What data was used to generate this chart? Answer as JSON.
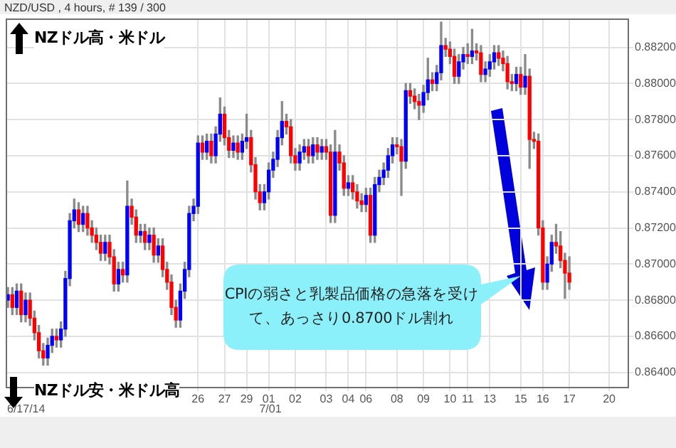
{
  "chart_data": {
    "type": "candlestick",
    "title": "NZD/USD , 4 hours, # 139 / 300",
    "annotations": [
      "NZドル高・米ドル",
      "NZドル安・米ドル高",
      "CPIの弱さと乳製品価格の急落を受けて、あっさり0.8700ドル割れ",
      "6/17/14",
      "7/01"
    ],
    "categories": [
      null,
      null,
      null,
      null,
      null,
      null,
      null,
      null,
      null,
      null,
      null,
      null,
      null,
      null,
      null,
      null,
      null,
      null,
      null,
      null,
      null,
      null,
      null,
      null,
      null,
      null,
      null,
      null,
      null,
      null,
      null,
      null,
      null,
      null,
      null,
      null,
      null,
      null,
      null,
      null,
      null,
      null,
      null,
      "26",
      null,
      null,
      null,
      null,
      null,
      "27",
      null,
      null,
      null,
      null,
      "29",
      null,
      null,
      null,
      null,
      "01",
      null,
      null,
      null,
      null,
      null,
      "02",
      null,
      null,
      null,
      null,
      null,
      null,
      "03",
      null,
      null,
      null,
      null,
      "04",
      null,
      null,
      null,
      "06",
      null,
      null,
      null,
      null,
      null,
      null,
      "08",
      null,
      null,
      null,
      null,
      null,
      "09",
      null,
      null,
      null,
      null,
      null,
      "10",
      null,
      null,
      null,
      "11",
      null,
      null,
      null,
      null,
      "13",
      null,
      null,
      null,
      null,
      null,
      null,
      "15",
      null,
      null,
      null,
      null,
      "16",
      null,
      null,
      null,
      null,
      null,
      "17",
      null,
      null,
      null,
      null,
      null,
      null,
      null,
      null,
      "20",
      null,
      null,
      null,
      null
    ],
    "ohlc": [
      [
        0.868,
        0.8687,
        0.8676,
        0.8683
      ],
      [
        0.8683,
        0.8687,
        0.8672,
        0.8676
      ],
      [
        0.8676,
        0.8689,
        0.8672,
        0.8685
      ],
      [
        0.8685,
        0.8689,
        0.8668,
        0.8672
      ],
      [
        0.8672,
        0.8684,
        0.8668,
        0.868
      ],
      [
        0.868,
        0.8684,
        0.8666,
        0.867
      ],
      [
        0.867,
        0.8674,
        0.8658,
        0.8662
      ],
      [
        0.8662,
        0.8666,
        0.8648,
        0.8652
      ],
      [
        0.8652,
        0.8656,
        0.8644,
        0.8648
      ],
      [
        0.8648,
        0.8659,
        0.8644,
        0.8655
      ],
      [
        0.8655,
        0.8664,
        0.8651,
        0.866
      ],
      [
        0.866,
        0.8664,
        0.8654,
        0.8658
      ],
      [
        0.8658,
        0.8668,
        0.8654,
        0.8664
      ],
      [
        0.8664,
        0.8696,
        0.866,
        0.8692
      ],
      [
        0.8692,
        0.8728,
        0.8688,
        0.8724
      ],
      [
        0.8724,
        0.8736,
        0.872,
        0.873
      ],
      [
        0.873,
        0.8734,
        0.8718,
        0.8722
      ],
      [
        0.8722,
        0.8732,
        0.8718,
        0.8728
      ],
      [
        0.8728,
        0.8732,
        0.8716,
        0.872
      ],
      [
        0.872,
        0.8724,
        0.8712,
        0.8716
      ],
      [
        0.8716,
        0.872,
        0.8708,
        0.8712
      ],
      [
        0.8712,
        0.8716,
        0.8702,
        0.8706
      ],
      [
        0.8706,
        0.8716,
        0.8702,
        0.8712
      ],
      [
        0.8712,
        0.8716,
        0.87,
        0.8704
      ],
      [
        0.8704,
        0.8708,
        0.8685,
        0.8689
      ],
      [
        0.8689,
        0.8701,
        0.8685,
        0.8697
      ],
      [
        0.8697,
        0.8701,
        0.869,
        0.8694
      ],
      [
        0.8694,
        0.8746,
        0.869,
        0.8732
      ],
      [
        0.8732,
        0.8736,
        0.8722,
        0.8726
      ],
      [
        0.8726,
        0.873,
        0.8712,
        0.8716
      ],
      [
        0.8716,
        0.8722,
        0.8712,
        0.8718
      ],
      [
        0.8718,
        0.8722,
        0.8708,
        0.8712
      ],
      [
        0.8712,
        0.872,
        0.8708,
        0.8716
      ],
      [
        0.8716,
        0.872,
        0.8701,
        0.8705
      ],
      [
        0.8705,
        0.8714,
        0.8701,
        0.871
      ],
      [
        0.871,
        0.8714,
        0.8693,
        0.8697
      ],
      [
        0.8697,
        0.8701,
        0.8686,
        0.869
      ],
      [
        0.869,
        0.8694,
        0.8672,
        0.8676
      ],
      [
        0.8676,
        0.868,
        0.8665,
        0.8669
      ],
      [
        0.8669,
        0.8689,
        0.8665,
        0.8685
      ],
      [
        0.8685,
        0.8701,
        0.8681,
        0.8697
      ],
      [
        0.8697,
        0.8732,
        0.8693,
        0.8728
      ],
      [
        0.8728,
        0.8736,
        0.8724,
        0.8732
      ],
      [
        0.8732,
        0.8771,
        0.8728,
        0.8767
      ],
      [
        0.8767,
        0.8771,
        0.8758,
        0.8762
      ],
      [
        0.8762,
        0.8772,
        0.8758,
        0.8768
      ],
      [
        0.8768,
        0.8772,
        0.8756,
        0.876
      ],
      [
        0.876,
        0.8776,
        0.8756,
        0.8772
      ],
      [
        0.8772,
        0.8792,
        0.8768,
        0.8783
      ],
      [
        0.8783,
        0.8787,
        0.8766,
        0.877
      ],
      [
        0.877,
        0.8774,
        0.8759,
        0.8763
      ],
      [
        0.8763,
        0.8771,
        0.8759,
        0.8767
      ],
      [
        0.8767,
        0.8771,
        0.8758,
        0.8762
      ],
      [
        0.8762,
        0.8772,
        0.8758,
        0.8768
      ],
      [
        0.8768,
        0.8783,
        0.8764,
        0.877
      ],
      [
        0.877,
        0.8774,
        0.8751,
        0.8755
      ],
      [
        0.8755,
        0.8759,
        0.8736,
        0.874
      ],
      [
        0.874,
        0.8744,
        0.873,
        0.8734
      ],
      [
        0.8734,
        0.8744,
        0.873,
        0.874
      ],
      [
        0.874,
        0.8756,
        0.8736,
        0.8752
      ],
      [
        0.8752,
        0.8762,
        0.8748,
        0.8758
      ],
      [
        0.8758,
        0.8774,
        0.8754,
        0.877
      ],
      [
        0.877,
        0.879,
        0.8766,
        0.8779
      ],
      [
        0.8779,
        0.8783,
        0.8772,
        0.8776
      ],
      [
        0.8776,
        0.878,
        0.8756,
        0.876
      ],
      [
        0.876,
        0.8764,
        0.8752,
        0.8756
      ],
      [
        0.8756,
        0.8766,
        0.8752,
        0.8762
      ],
      [
        0.8762,
        0.8769,
        0.8758,
        0.8765
      ],
      [
        0.8765,
        0.8769,
        0.8756,
        0.876
      ],
      [
        0.876,
        0.877,
        0.8756,
        0.8766
      ],
      [
        0.8766,
        0.877,
        0.8758,
        0.8762
      ],
      [
        0.8762,
        0.8769,
        0.8758,
        0.8765
      ],
      [
        0.8765,
        0.8769,
        0.8758,
        0.8762
      ],
      [
        0.8762,
        0.8766,
        0.8723,
        0.8727
      ],
      [
        0.8727,
        0.8774,
        0.8723,
        0.8762
      ],
      [
        0.8762,
        0.8766,
        0.8752,
        0.8756
      ],
      [
        0.8756,
        0.876,
        0.8738,
        0.8742
      ],
      [
        0.8742,
        0.8749,
        0.8738,
        0.8745
      ],
      [
        0.8745,
        0.8749,
        0.8736,
        0.874
      ],
      [
        0.874,
        0.8744,
        0.8731,
        0.8735
      ],
      [
        0.8735,
        0.8739,
        0.8729,
        0.8733
      ],
      [
        0.8733,
        0.8742,
        0.8729,
        0.8738
      ],
      [
        0.8738,
        0.8742,
        0.8712,
        0.8716
      ],
      [
        0.8716,
        0.8748,
        0.8712,
        0.8744
      ],
      [
        0.8744,
        0.8752,
        0.874,
        0.8748
      ],
      [
        0.8748,
        0.8756,
        0.8744,
        0.8752
      ],
      [
        0.8752,
        0.8764,
        0.8748,
        0.876
      ],
      [
        0.876,
        0.877,
        0.8756,
        0.8766
      ],
      [
        0.8766,
        0.877,
        0.8761,
        0.8765
      ],
      [
        0.8765,
        0.8769,
        0.8738,
        0.8757
      ],
      [
        0.8757,
        0.88,
        0.8753,
        0.8796
      ],
      [
        0.8796,
        0.88,
        0.8789,
        0.8793
      ],
      [
        0.8793,
        0.8797,
        0.8786,
        0.879
      ],
      [
        0.879,
        0.8794,
        0.878,
        0.8788
      ],
      [
        0.8788,
        0.8799,
        0.8784,
        0.8795
      ],
      [
        0.8795,
        0.8814,
        0.8791,
        0.8802
      ],
      [
        0.8802,
        0.8806,
        0.8796,
        0.88
      ],
      [
        0.88,
        0.881,
        0.8796,
        0.8806
      ],
      [
        0.8806,
        0.8834,
        0.8802,
        0.8821
      ],
      [
        0.8821,
        0.8825,
        0.8815,
        0.8819
      ],
      [
        0.8819,
        0.8823,
        0.8811,
        0.8815
      ],
      [
        0.8815,
        0.8819,
        0.88,
        0.8804
      ],
      [
        0.8804,
        0.8816,
        0.88,
        0.8812
      ],
      [
        0.8812,
        0.882,
        0.8808,
        0.8816
      ],
      [
        0.8816,
        0.8822,
        0.8811,
        0.8815
      ],
      [
        0.8815,
        0.883,
        0.8811,
        0.8818
      ],
      [
        0.8818,
        0.8822,
        0.8813,
        0.8817
      ],
      [
        0.8817,
        0.8821,
        0.8801,
        0.8805
      ],
      [
        0.8805,
        0.8812,
        0.8801,
        0.8808
      ],
      [
        0.8808,
        0.8816,
        0.8804,
        0.8812
      ],
      [
        0.8812,
        0.8821,
        0.8808,
        0.8817
      ],
      [
        0.8817,
        0.8821,
        0.881,
        0.8814
      ],
      [
        0.8814,
        0.8818,
        0.8807,
        0.8811
      ],
      [
        0.8811,
        0.8815,
        0.8797,
        0.8801
      ],
      [
        0.8801,
        0.8805,
        0.8796,
        0.88
      ],
      [
        0.88,
        0.8809,
        0.8796,
        0.8805
      ],
      [
        0.8805,
        0.8809,
        0.8794,
        0.8798
      ],
      [
        0.8798,
        0.8816,
        0.8794,
        0.8804
      ],
      [
        0.8804,
        0.8808,
        0.8753,
        0.8769
      ],
      [
        0.8769,
        0.8773,
        0.8764,
        0.8768
      ],
      [
        0.8768,
        0.8772,
        0.8716,
        0.872
      ],
      [
        0.872,
        0.8724,
        0.8686,
        0.869
      ],
      [
        0.869,
        0.8704,
        0.8686,
        0.87
      ],
      [
        0.87,
        0.8716,
        0.8696,
        0.8712
      ],
      [
        0.8712,
        0.8722,
        0.8706,
        0.871
      ],
      [
        0.871,
        0.8718,
        0.8698,
        0.8702
      ],
      [
        0.8702,
        0.8706,
        0.8681,
        0.8695
      ],
      [
        0.8695,
        0.8704,
        0.8686,
        0.869
      ],
      null,
      null,
      null,
      null,
      null,
      null,
      null,
      null,
      null,
      null,
      null,
      null,
      null
    ],
    "colors": [
      "#0000ff",
      "#ff0000",
      "#0000ff",
      "#ff0000",
      "#0000ff",
      "#ff0000",
      "#ff0000",
      "#ff0000",
      "#ff0000",
      "#0000ff",
      "#0000ff",
      "#ff0000",
      "#0000ff",
      "#0000ff",
      "#0000ff",
      "#0000ff",
      "#ff0000",
      "#0000ff",
      "#ff0000",
      "#ff0000",
      "#ff0000",
      "#ff0000",
      "#0000ff",
      "#ff0000",
      "#ff0000",
      "#0000ff",
      "#ff0000",
      "#0000ff",
      "#ff0000",
      "#ff0000",
      "#0000ff",
      "#ff0000",
      "#0000ff",
      "#ff0000",
      "#0000ff",
      "#ff0000",
      "#ff0000",
      "#ff0000",
      "#ff0000",
      "#0000ff",
      "#0000ff",
      "#0000ff",
      "#0000ff",
      "#0000ff",
      "#ff0000",
      "#0000ff",
      "#ff0000",
      "#0000ff",
      "#0000ff",
      "#ff0000",
      "#ff0000",
      "#0000ff",
      "#ff0000",
      "#0000ff",
      "#0000ff",
      "#ff0000",
      "#ff0000",
      "#ff0000",
      "#0000ff",
      "#0000ff",
      "#0000ff",
      "#0000ff",
      "#0000ff",
      "#ff0000",
      "#ff0000",
      "#ff0000",
      "#0000ff",
      "#0000ff",
      "#ff0000",
      "#0000ff",
      "#ff0000",
      "#0000ff",
      "#ff0000",
      "#ff0000",
      "#0000ff",
      "#ff0000",
      "#ff0000",
      "#0000ff",
      "#ff0000",
      "#ff0000",
      "#ff0000",
      "#0000ff",
      "#ff0000",
      "#0000ff",
      "#0000ff",
      "#0000ff",
      "#0000ff",
      "#0000ff",
      "#ff0000",
      "#ff0000",
      "#0000ff",
      "#ff0000",
      "#ff0000",
      "#ff0000",
      "#0000ff",
      "#0000ff",
      "#ff0000",
      "#0000ff",
      "#0000ff",
      "#ff0000",
      "#ff0000",
      "#ff0000",
      "#0000ff",
      "#0000ff",
      "#ff0000",
      "#0000ff",
      "#ff0000",
      "#ff0000",
      "#0000ff",
      "#0000ff",
      "#0000ff",
      "#ff0000",
      "#ff0000",
      "#ff0000",
      "#ff0000",
      "#0000ff",
      "#ff0000",
      "#0000ff",
      "#ff0000",
      "#ff0000",
      "#ff0000",
      "#ff0000",
      "#0000ff",
      "#0000ff",
      "#ff0000",
      "#ff0000",
      "#ff0000",
      "#ff0000",
      null,
      null,
      null,
      null,
      null,
      null,
      null,
      null,
      null,
      null,
      null,
      null,
      null
    ],
    "ylim": [
      0.8632,
      0.8836
    ],
    "yticks": [
      {
        "value": 0.864,
        "label": "0.86400"
      },
      {
        "value": 0.866,
        "label": "0.86600"
      },
      {
        "value": 0.868,
        "label": "0.86800"
      },
      {
        "value": 0.87,
        "label": "0.87000"
      },
      {
        "value": 0.872,
        "label": "0.87200"
      },
      {
        "value": 0.874,
        "label": "0.87400"
      },
      {
        "value": 0.876,
        "label": "0.87600"
      },
      {
        "value": 0.878,
        "label": "0.87800"
      },
      {
        "value": 0.88,
        "label": "0.88000"
      },
      {
        "value": 0.882,
        "label": "0.88200"
      }
    ],
    "grid": true
  }
}
